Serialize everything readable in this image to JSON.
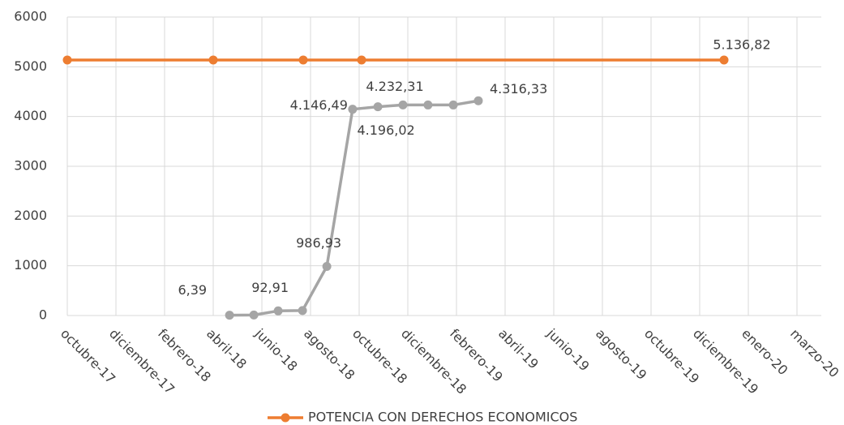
{
  "chart_data": {
    "type": "line",
    "series": [
      {
        "name": "POTENCIA CON DERECHOS ECONOMICOS",
        "color": "#ed7d31",
        "x": [
          0,
          6,
          9.7,
          12.1,
          27
        ],
        "values": [
          5136.82,
          5136.82,
          5136.82,
          5136.82,
          5136.82
        ],
        "value_labels": [
          null,
          null,
          null,
          null,
          "5.136,82"
        ]
      },
      {
        "color": "#a5a5a5",
        "x": [
          6.67,
          7.67,
          8.67,
          9.67,
          10.67,
          11.73,
          12.77,
          13.8,
          14.83,
          15.87,
          16.9
        ],
        "values": [
          6.39,
          10,
          92.91,
          100,
          986.93,
          4146.49,
          4196.02,
          4232.31,
          4232,
          4232,
          4316.33
        ],
        "value_labels": [
          "6,39",
          null,
          "92,91",
          null,
          "986,93",
          "4.146,49",
          "4.196,02",
          "4.232,31",
          null,
          null,
          "4.316,33"
        ]
      }
    ],
    "xlim": [
      0,
      31
    ],
    "xticks": [
      {
        "value": 0,
        "label": "octubre-17"
      },
      {
        "value": 2,
        "label": "diciembre-17"
      },
      {
        "value": 4,
        "label": "febrero-18"
      },
      {
        "value": 6,
        "label": "abril-18"
      },
      {
        "value": 8,
        "label": "junio-18"
      },
      {
        "value": 10,
        "label": "agosto-18"
      },
      {
        "value": 12,
        "label": "octubre-18"
      },
      {
        "value": 14,
        "label": "diciembre-18"
      },
      {
        "value": 16,
        "label": "febrero-19"
      },
      {
        "value": 18,
        "label": "abril-19"
      },
      {
        "value": 20,
        "label": "junio-19"
      },
      {
        "value": 22,
        "label": "agosto-19"
      },
      {
        "value": 24,
        "label": "octubre-19"
      },
      {
        "value": 26,
        "label": "diciembre-19"
      },
      {
        "value": 28,
        "label": "enero-20"
      },
      {
        "value": 30,
        "label": "marzo-20"
      }
    ],
    "ylim": [
      0,
      6000
    ],
    "yticks": [
      0,
      1000,
      2000,
      3000,
      4000,
      5000,
      6000
    ],
    "grid": true,
    "legend": "bottom"
  }
}
